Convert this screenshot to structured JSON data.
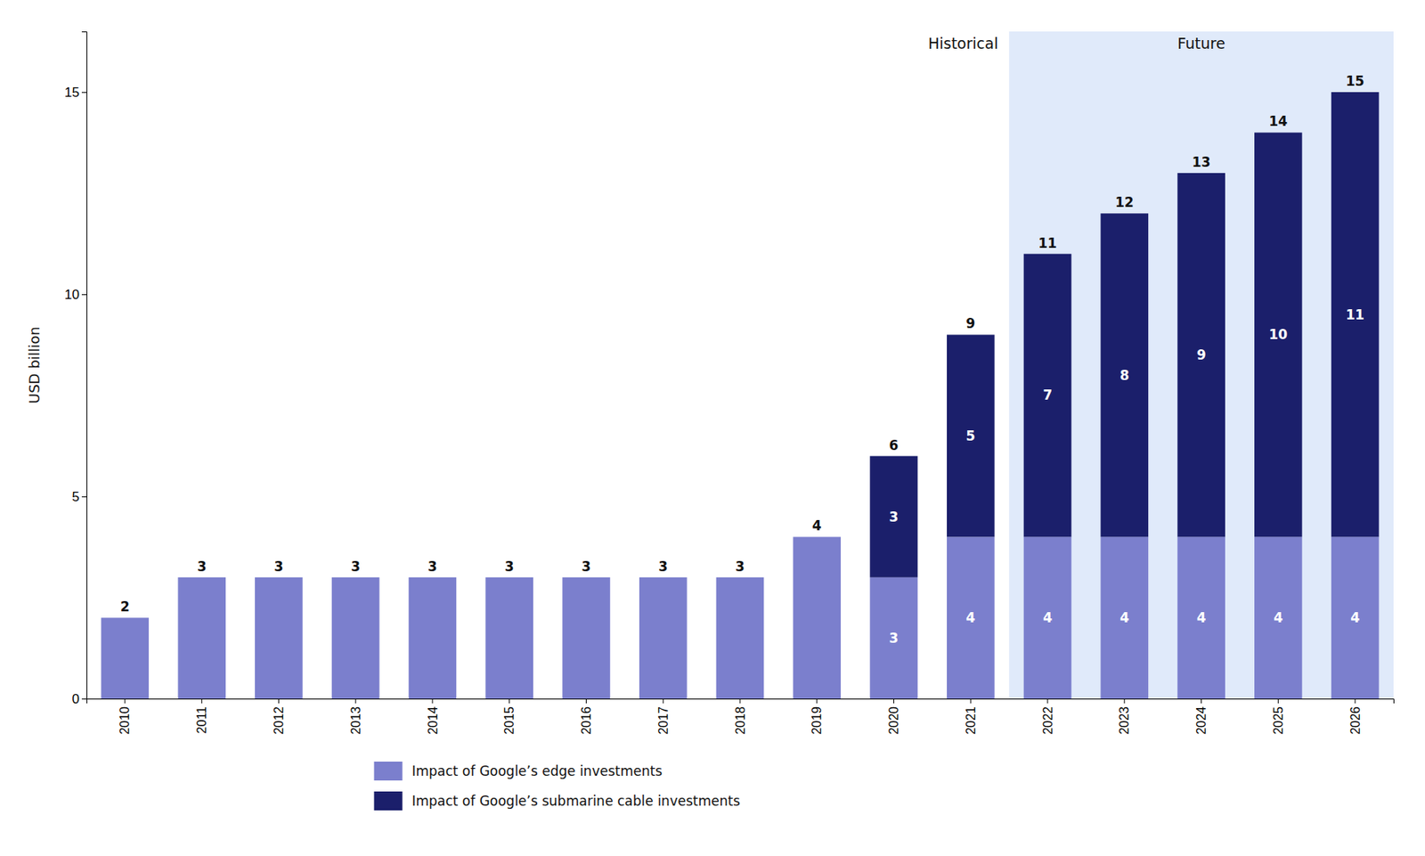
{
  "chart_data": {
    "type": "bar",
    "stacked": true,
    "data_labels": true,
    "y_label": "USD billion",
    "categories": [
      "2010",
      "2011",
      "2012",
      "2013",
      "2014",
      "2015",
      "2016",
      "2017",
      "2018",
      "2019",
      "2020",
      "2021",
      "2022",
      "2023",
      "2024",
      "2025",
      "2026"
    ],
    "series": [
      {
        "name": "Impact of Google’s edge investments",
        "color": "#7B7FCD",
        "values": [
          2,
          3,
          3,
          3,
          3,
          3,
          3,
          3,
          3,
          4,
          3,
          4,
          4,
          4,
          4,
          4,
          4
        ],
        "value_labels": [
          null,
          null,
          null,
          null,
          null,
          null,
          null,
          null,
          null,
          null,
          "3",
          "4",
          "4",
          "4",
          "4",
          "4",
          "4"
        ]
      },
      {
        "name": "Impact of Google’s submarine cable investments",
        "color": "#1B1F6B",
        "values": [
          0,
          0,
          0,
          0,
          0,
          0,
          0,
          0,
          0,
          0,
          3,
          5,
          7,
          8,
          9,
          10,
          11
        ],
        "value_labels": [
          null,
          null,
          null,
          null,
          null,
          null,
          null,
          null,
          null,
          null,
          "3",
          "5",
          "7",
          "8",
          "9",
          "10",
          "11"
        ]
      }
    ],
    "totals": [
      2,
      3,
      3,
      3,
      3,
      3,
      3,
      3,
      3,
      4,
      6,
      9,
      11,
      12,
      13,
      14,
      15
    ],
    "regions": [
      {
        "label": "Historical",
        "from": "2010",
        "to": "2021"
      },
      {
        "label": "Future",
        "from": "2022",
        "to": "2026",
        "color": "#E0EAFA"
      }
    ],
    "ylim": [
      0,
      16.5
    ],
    "yticks": [
      0,
      5,
      10,
      15
    ],
    "legend": "bottom"
  }
}
